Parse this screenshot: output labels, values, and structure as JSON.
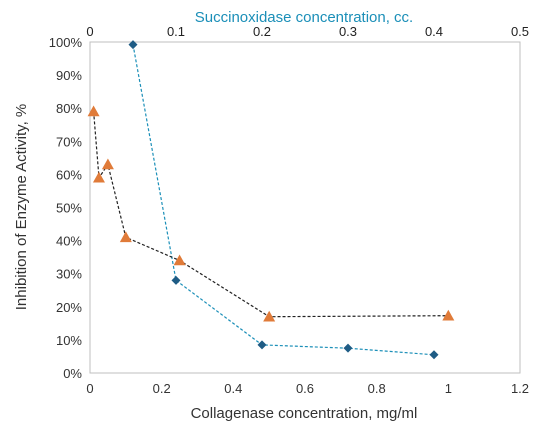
{
  "chart_data": {
    "type": "scatter",
    "ylabel": "Inhibition of Enzyme Activity, %",
    "xlabel_bottom": "Collagenase concentration, mg/ml",
    "xlabel_top": "Succinoxidase concentration, cc.",
    "ylim": [
      0,
      100
    ],
    "xlim_bottom": [
      0,
      1.2
    ],
    "xlim_top": [
      0,
      0.5
    ],
    "yticks": [
      "0%",
      "10%",
      "20%",
      "30%",
      "40%",
      "50%",
      "60%",
      "70%",
      "80%",
      "90%",
      "100%"
    ],
    "xticks_bottom": [
      "0",
      "0.2",
      "0.4",
      "0.6",
      "0.8",
      "1",
      "1.2"
    ],
    "xticks_top": [
      "0",
      "0.1",
      "0.2",
      "0.3",
      "0.4",
      "0.5"
    ],
    "grid": false,
    "series": [
      {
        "axis": "top",
        "marker": "diamond",
        "line": "dashed",
        "color": "#1f5c85",
        "line_color": "#1b8fb8",
        "points": [
          {
            "x": 0.05,
            "y": 99.2
          },
          {
            "x": 0.1,
            "y": 28
          },
          {
            "x": 0.2,
            "y": 8.5
          },
          {
            "x": 0.3,
            "y": 7.5
          },
          {
            "x": 0.4,
            "y": 5.5
          }
        ]
      },
      {
        "axis": "bottom",
        "marker": "triangle",
        "line": "dashed",
        "color": "#e07b39",
        "line_color": "#222222",
        "points": [
          {
            "x": 0.01,
            "y": 79
          },
          {
            "x": 0.025,
            "y": 59
          },
          {
            "x": 0.05,
            "y": 63
          },
          {
            "x": 0.1,
            "y": 41
          },
          {
            "x": 0.25,
            "y": 34
          },
          {
            "x": 0.5,
            "y": 17
          },
          {
            "x": 1.0,
            "y": 17.3
          }
        ]
      }
    ]
  },
  "colors": {
    "top_axis_title": "#1b8fb8",
    "top_tick_labels": "#222222",
    "axis_text": "#333333"
  }
}
